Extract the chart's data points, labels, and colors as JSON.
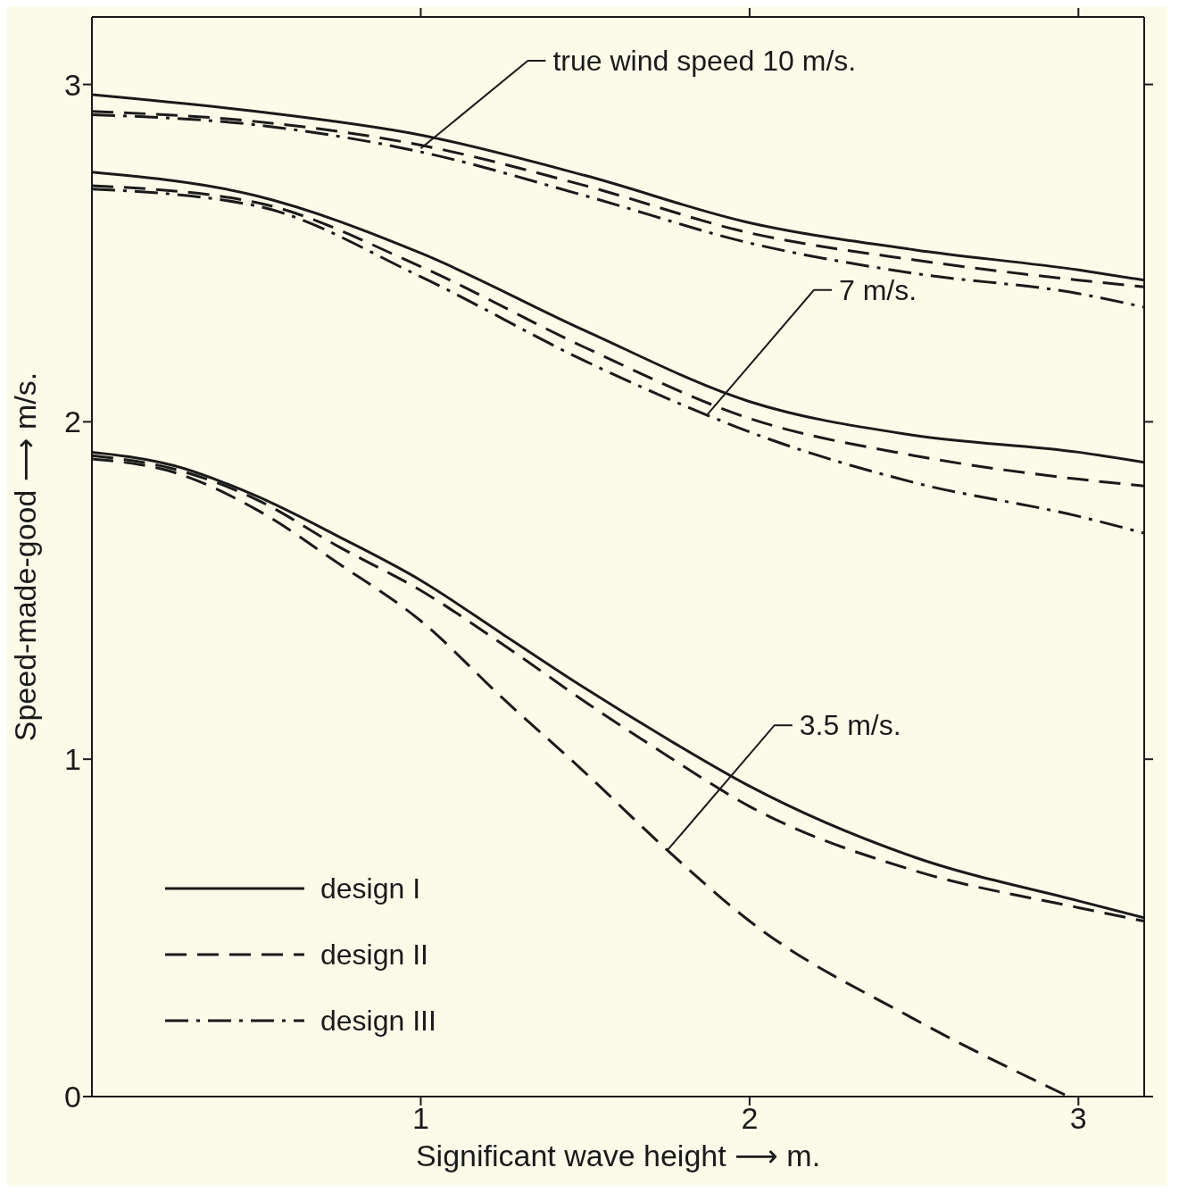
{
  "chart_data": {
    "type": "line",
    "xlabel": "Significant wave height ⟶ m.",
    "ylabel": "Speed-made-good ⟶ m/s.",
    "xlim": [
      0,
      3.2
    ],
    "xticks": [
      1,
      2,
      3
    ],
    "ylim": [
      0,
      3.2
    ],
    "yticks": [
      0,
      1,
      2,
      3
    ],
    "grid": false,
    "legend": "bottom left",
    "marker": "none",
    "series": [
      {
        "name": "design I",
        "color": "#1a1a1a",
        "line_style": "solid",
        "x": [
          0,
          0.5,
          1,
          1.5,
          2,
          2.5,
          3,
          3.2
        ],
        "values": [
          2.97,
          2.92,
          2.85,
          2.73,
          2.59,
          2.51,
          2.45,
          2.42
        ]
      },
      {
        "name": "design II",
        "color": "#1a1a1a",
        "line_style": "dashed",
        "x": [
          0,
          0.5,
          1,
          1.5,
          2,
          2.5,
          3,
          3.2
        ],
        "values": [
          2.92,
          2.89,
          2.82,
          2.7,
          2.56,
          2.48,
          2.42,
          2.4
        ]
      },
      {
        "name": "design III",
        "color": "#1a1a1a",
        "line_style": "dashdot",
        "x": [
          0,
          0.5,
          1,
          1.5,
          2,
          2.5,
          3,
          3.2
        ],
        "values": [
          2.91,
          2.88,
          2.8,
          2.67,
          2.53,
          2.44,
          2.38,
          2.34
        ]
      },
      {
        "color": "#1a1a1a",
        "line_style": "solid",
        "x": [
          0,
          0.5,
          1,
          1.5,
          2,
          2.5,
          3,
          3.2
        ],
        "values": [
          2.74,
          2.67,
          2.5,
          2.27,
          2.06,
          1.96,
          1.91,
          1.88
        ]
      },
      {
        "color": "#1a1a1a",
        "line_style": "dashed",
        "x": [
          0,
          0.5,
          1,
          1.5,
          2,
          2.5,
          3,
          3.2
        ],
        "values": [
          2.7,
          2.65,
          2.46,
          2.22,
          2.01,
          1.9,
          1.83,
          1.81
        ]
      },
      {
        "color": "#1a1a1a",
        "line_style": "dashdot",
        "x": [
          0,
          0.5,
          1,
          1.5,
          1.87,
          2,
          2.5,
          3,
          3.2
        ],
        "values": [
          2.69,
          2.64,
          2.43,
          2.18,
          2.02,
          1.97,
          1.82,
          1.72,
          1.67
        ]
      },
      {
        "color": "#1a1a1a",
        "line_style": "solid",
        "x": [
          0,
          0.25,
          0.5,
          0.75,
          1,
          1.25,
          1.5,
          1.75,
          2,
          2.5,
          3,
          3.2
        ],
        "values": [
          1.91,
          1.87,
          1.78,
          1.66,
          1.53,
          1.37,
          1.21,
          1.06,
          0.92,
          0.71,
          0.58,
          0.53
        ]
      },
      {
        "color": "#1a1a1a",
        "line_style": "dashed",
        "x": [
          0,
          0.25,
          0.5,
          0.75,
          1,
          1.25,
          1.5,
          1.75,
          2,
          2.5,
          3,
          3.2
        ],
        "values": [
          1.9,
          1.86,
          1.77,
          1.63,
          1.5,
          1.34,
          1.17,
          1.01,
          0.86,
          0.67,
          0.56,
          0.52
        ]
      },
      {
        "color": "#1a1a1a",
        "line_style": "dashed",
        "x": [
          0,
          0.25,
          0.5,
          0.75,
          1,
          1.25,
          1.5,
          1.75,
          2,
          2.5,
          2.97
        ],
        "values": [
          1.89,
          1.85,
          1.74,
          1.58,
          1.41,
          1.18,
          0.96,
          0.73,
          0.52,
          0.23,
          0
        ]
      }
    ],
    "annotations": [
      {
        "text": "true wind speed 10  m/s.",
        "x": 1.0,
        "y": 2.81
      },
      {
        "text": "7  m/s.",
        "x": 1.87,
        "y": 2.02
      },
      {
        "text": "3.5 m/s.",
        "x": 1.75,
        "y": 0.73
      }
    ]
  }
}
